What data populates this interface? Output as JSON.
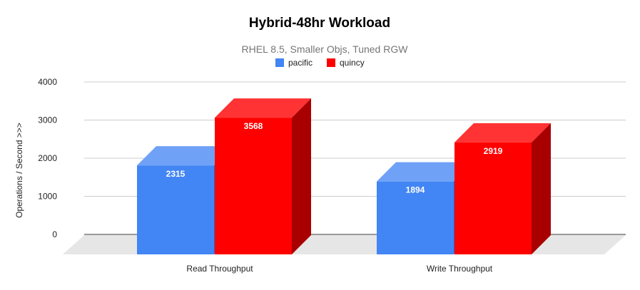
{
  "chart_data": {
    "type": "bar",
    "title": "Hybrid-48hr Workload",
    "subtitle": "RHEL 8.5, Smaller Objs, Tuned RGW",
    "xlabel": "",
    "ylabel": "Operations / Second  >>>",
    "categories": [
      "Read Throughput",
      "Write Throughput"
    ],
    "series": [
      {
        "name": "pacific",
        "values": [
          2315,
          1894
        ],
        "color": "#4285f4",
        "top_color": "#6fa1f7",
        "side_color": "#2f64c4",
        "labels": [
          "2315",
          "1894"
        ]
      },
      {
        "name": "quincy",
        "values": [
          3568,
          2919
        ],
        "color": "#ff0000",
        "top_color": "#ff3333",
        "side_color": "#a80000",
        "labels": [
          "3568",
          "2919"
        ]
      }
    ],
    "ylim": [
      0,
      4000
    ],
    "y_ticks": [
      "0",
      "1000",
      "2000",
      "3000",
      "4000"
    ],
    "grid": true,
    "legend_position": "top",
    "style": "3d",
    "floor_color": "#e6e6e6",
    "grid_color": "#cccccc"
  }
}
